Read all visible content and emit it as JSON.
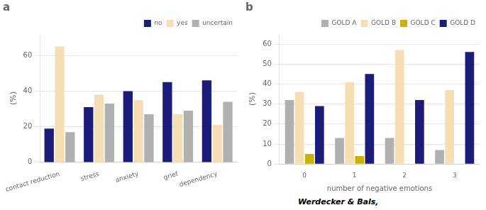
{
  "chart_data": [
    {
      "type": "bar",
      "title": "a",
      "categories": [
        "contact reduction",
        "stress",
        "anxiety",
        "grief",
        "dependency"
      ],
      "series": [
        {
          "name": "no",
          "color": "#1c1c7a",
          "values": [
            19,
            31,
            40,
            45,
            46
          ]
        },
        {
          "name": "yes",
          "color": "#f5deb3",
          "values": [
            65,
            38,
            35,
            27,
            21
          ]
        },
        {
          "name": "uncertain",
          "color": "#b0b0b0",
          "values": [
            17,
            33,
            27,
            29,
            34
          ]
        }
      ],
      "ylabel": "(%)",
      "ylim": [
        0,
        72
      ],
      "yticks": [
        0,
        20,
        40,
        60
      ],
      "grid": true,
      "legend": "upper right"
    },
    {
      "type": "bar",
      "title": "b",
      "categories": [
        "0",
        "1",
        "2",
        "3"
      ],
      "series": [
        {
          "name": "GOLD A",
          "color": "#b0b0b0",
          "values": [
            32,
            13,
            13,
            7
          ]
        },
        {
          "name": "GOLD B",
          "color": "#f5deb3",
          "values": [
            36,
            41,
            57,
            37
          ]
        },
        {
          "name": "GOLD C",
          "color": "#c8b400",
          "values": [
            5,
            4,
            0,
            0
          ]
        },
        {
          "name": "GOLD D",
          "color": "#1c1c7a",
          "values": [
            29,
            45,
            32,
            56
          ]
        }
      ],
      "ylabel": "(%)",
      "xlabel": "number of negative emotions",
      "ylim": [
        0,
        65
      ],
      "yticks": [
        0,
        10,
        20,
        30,
        40,
        50,
        60
      ],
      "grid": true,
      "legend": "upper right",
      "annotations": [
        "Werdecker & Bals,"
      ]
    }
  ]
}
